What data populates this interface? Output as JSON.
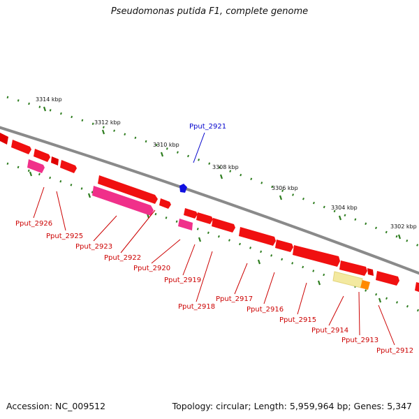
{
  "title": "Pseudomonas putida F1, complete genome",
  "footer": {
    "accession": "Accession: NC_009512",
    "summary": "Topology: circular; Length: 5,959,964 bp; Genes: 5,347"
  },
  "colors": {
    "backbone": "#8a8a8a",
    "tick": "#2e7d1f",
    "gene_red": "#f01010",
    "gene_pink": "#f0308a",
    "gene_orange": "#ff8a00",
    "gene_yellow": "#f3e9a0",
    "gene_blue": "#1010e0",
    "label_red": "#cc0000",
    "label_blue": "#0000cc"
  },
  "kbp_labels": [
    "3314 kbp",
    "3312 kbp",
    "3310 kbp",
    "3308 kbp",
    "3306 kbp",
    "3304 kbp",
    "3302 kbp"
  ],
  "gene_labels": [
    {
      "text": "Pput_2926",
      "color": "red"
    },
    {
      "text": "Pput_2925",
      "color": "red"
    },
    {
      "text": "Pput_2923",
      "color": "red"
    },
    {
      "text": "Pput_2922",
      "color": "red"
    },
    {
      "text": "Pput_2920",
      "color": "red"
    },
    {
      "text": "Pput_2919",
      "color": "red"
    },
    {
      "text": "Pput_2918",
      "color": "red"
    },
    {
      "text": "Pput_2917",
      "color": "red"
    },
    {
      "text": "Pput_2916",
      "color": "red"
    },
    {
      "text": "Pput_2915",
      "color": "red"
    },
    {
      "text": "Pput_2914",
      "color": "red"
    },
    {
      "text": "Pput_2913",
      "color": "red"
    },
    {
      "text": "Pput_2912",
      "color": "red"
    },
    {
      "text": "Pput_2921",
      "color": "blue"
    }
  ]
}
